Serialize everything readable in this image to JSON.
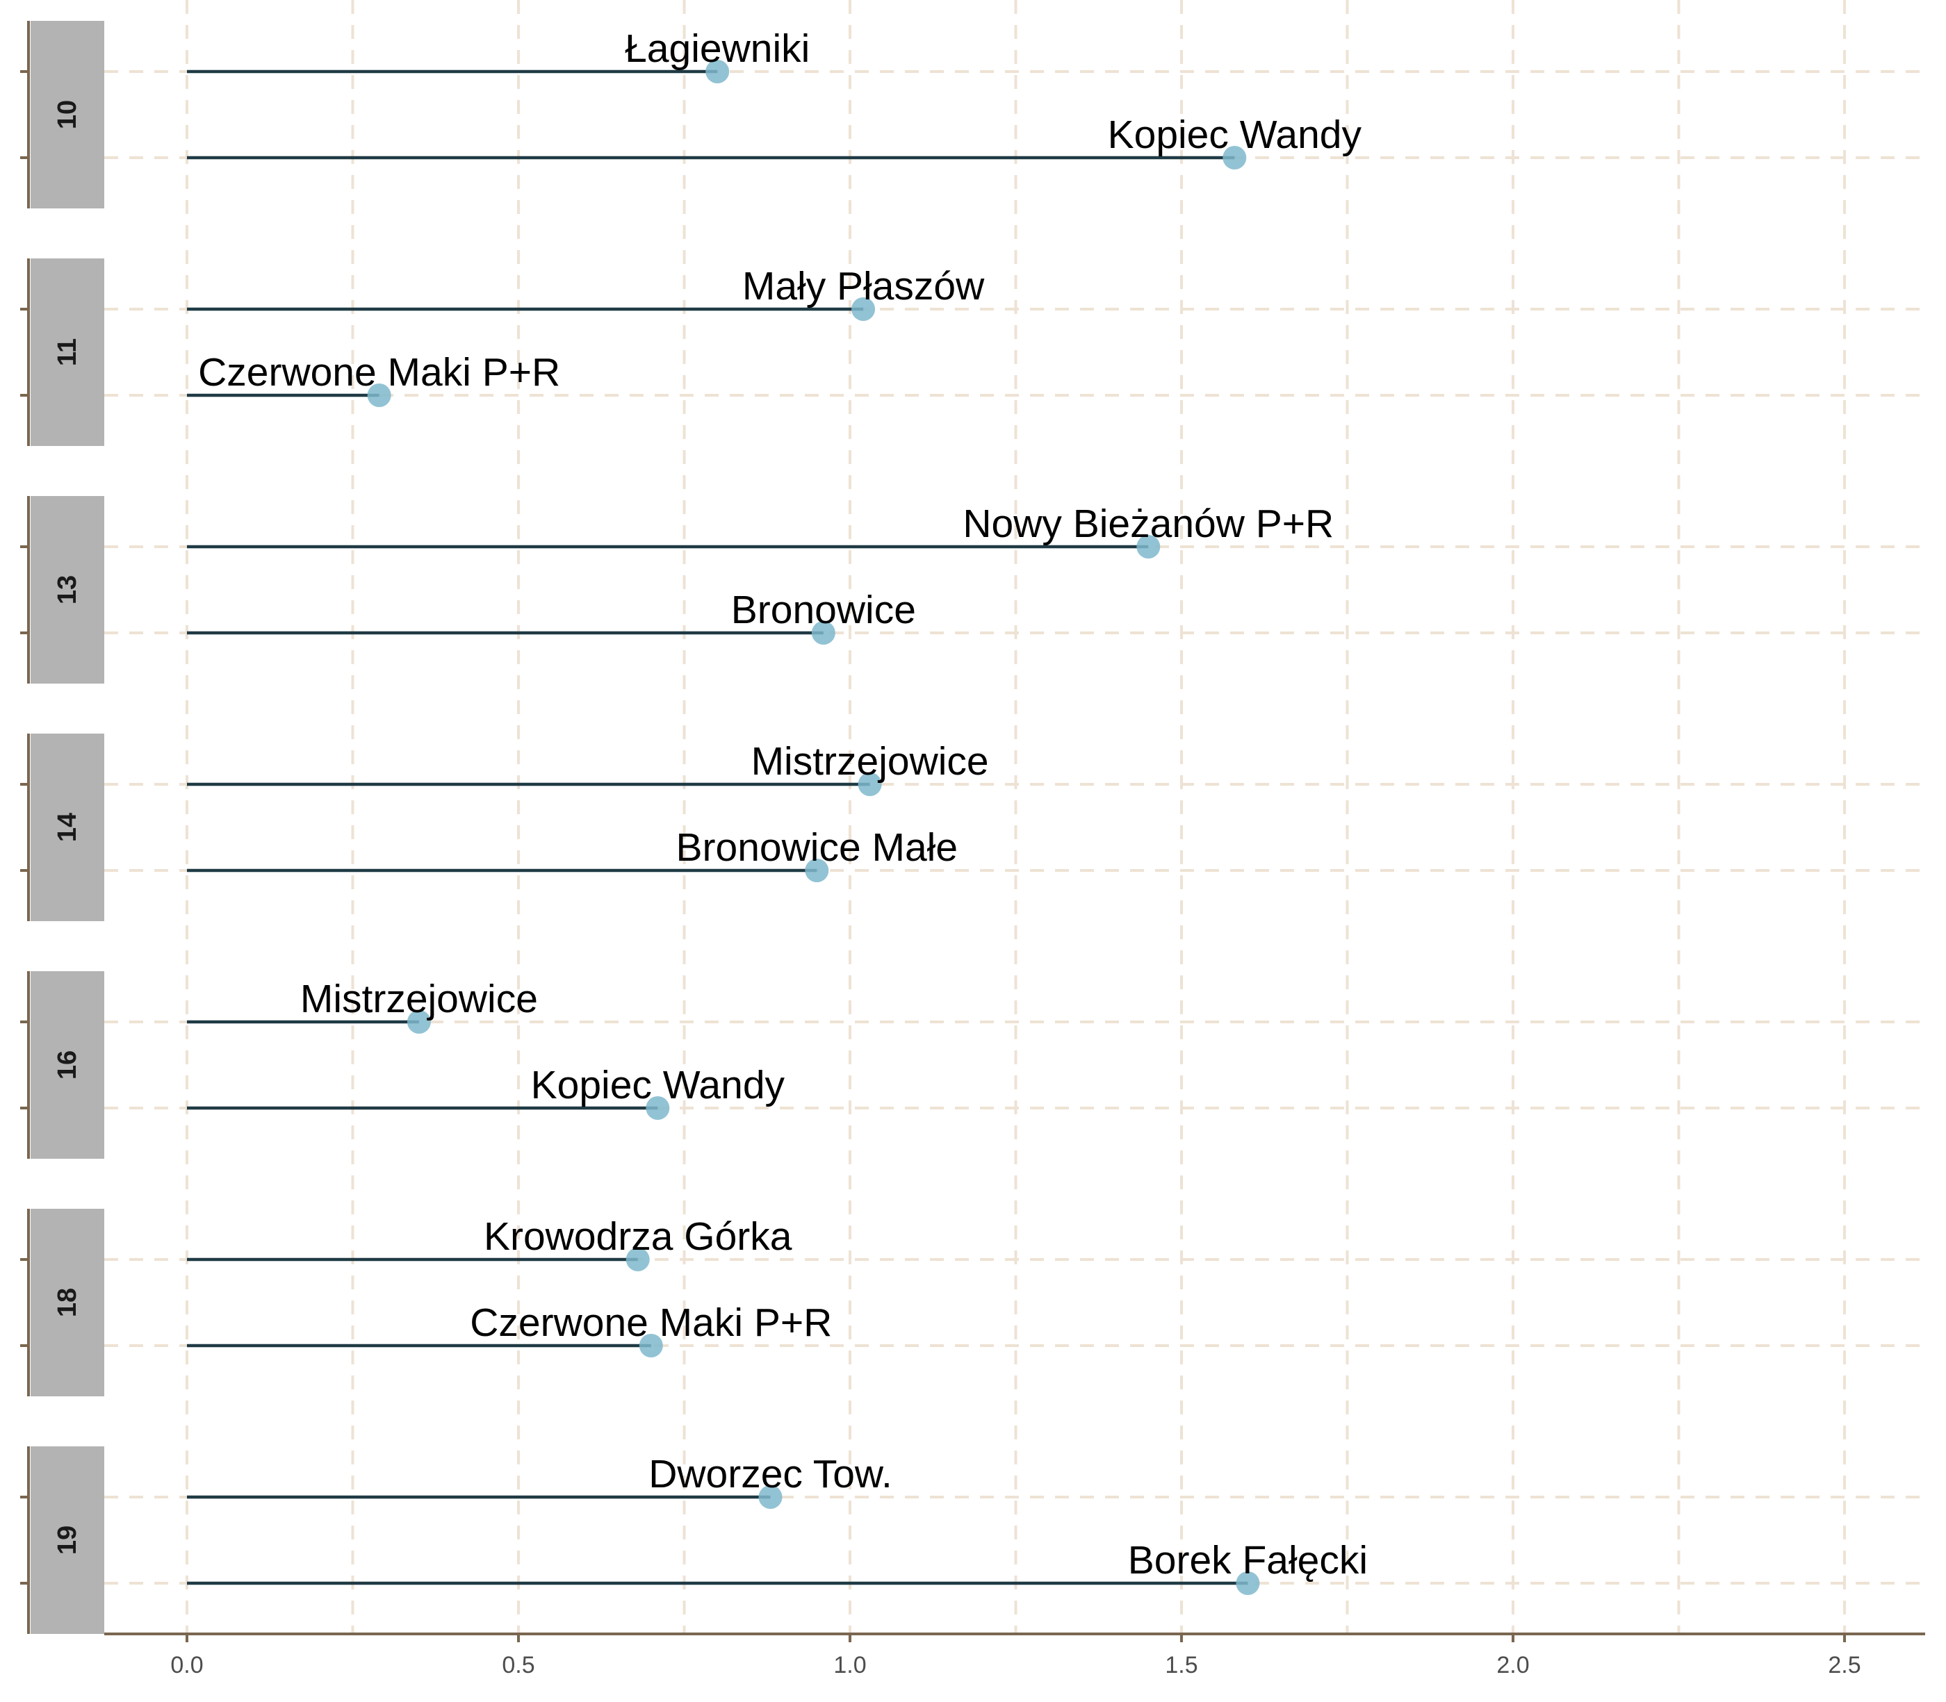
{
  "chart_data": {
    "type": "lollipop",
    "title": "",
    "xlabel": "",
    "ylabel": "",
    "xlim": [
      -0.12,
      2.62
    ],
    "x_ticks": [
      0.0,
      0.5,
      1.0,
      1.5,
      2.0,
      2.5
    ],
    "x_tick_labels": [
      "0.0",
      "0.5",
      "1.0",
      "1.5",
      "2.0",
      "2.5"
    ],
    "grid": "dashed",
    "facet_axis": "y",
    "facets": [
      {
        "name": "10",
        "points": [
          {
            "label": "Łagiewniki",
            "value": 0.8
          },
          {
            "label": "Kopiec Wandy",
            "value": 1.58
          }
        ]
      },
      {
        "name": "11",
        "points": [
          {
            "label": "Mały Płaszów",
            "value": 1.02
          },
          {
            "label": "Czerwone Maki P+R",
            "value": 0.29
          }
        ]
      },
      {
        "name": "13",
        "points": [
          {
            "label": "Nowy Bieżanów P+R",
            "value": 1.45
          },
          {
            "label": "Bronowice",
            "value": 0.96
          }
        ]
      },
      {
        "name": "14",
        "points": [
          {
            "label": "Mistrzejowice",
            "value": 1.03
          },
          {
            "label": "Bronowice Małe",
            "value": 0.95
          }
        ]
      },
      {
        "name": "16",
        "points": [
          {
            "label": "Mistrzejowice",
            "value": 0.35
          },
          {
            "label": "Kopiec Wandy",
            "value": 0.71
          }
        ]
      },
      {
        "name": "18",
        "points": [
          {
            "label": "Krowodrza Górka",
            "value": 0.68
          },
          {
            "label": "Czerwone Maki P+R",
            "value": 0.7
          }
        ]
      },
      {
        "name": "19",
        "points": [
          {
            "label": "Dworzec Tow.",
            "value": 0.88
          },
          {
            "label": "Borek Fałęcki",
            "value": 1.6
          }
        ]
      }
    ],
    "colors": {
      "point": "#7fb8cc",
      "segment": "#1f3a44",
      "grid": "#eee2d4",
      "axis": "#7a6650",
      "strip": "#b3b3b3"
    }
  }
}
